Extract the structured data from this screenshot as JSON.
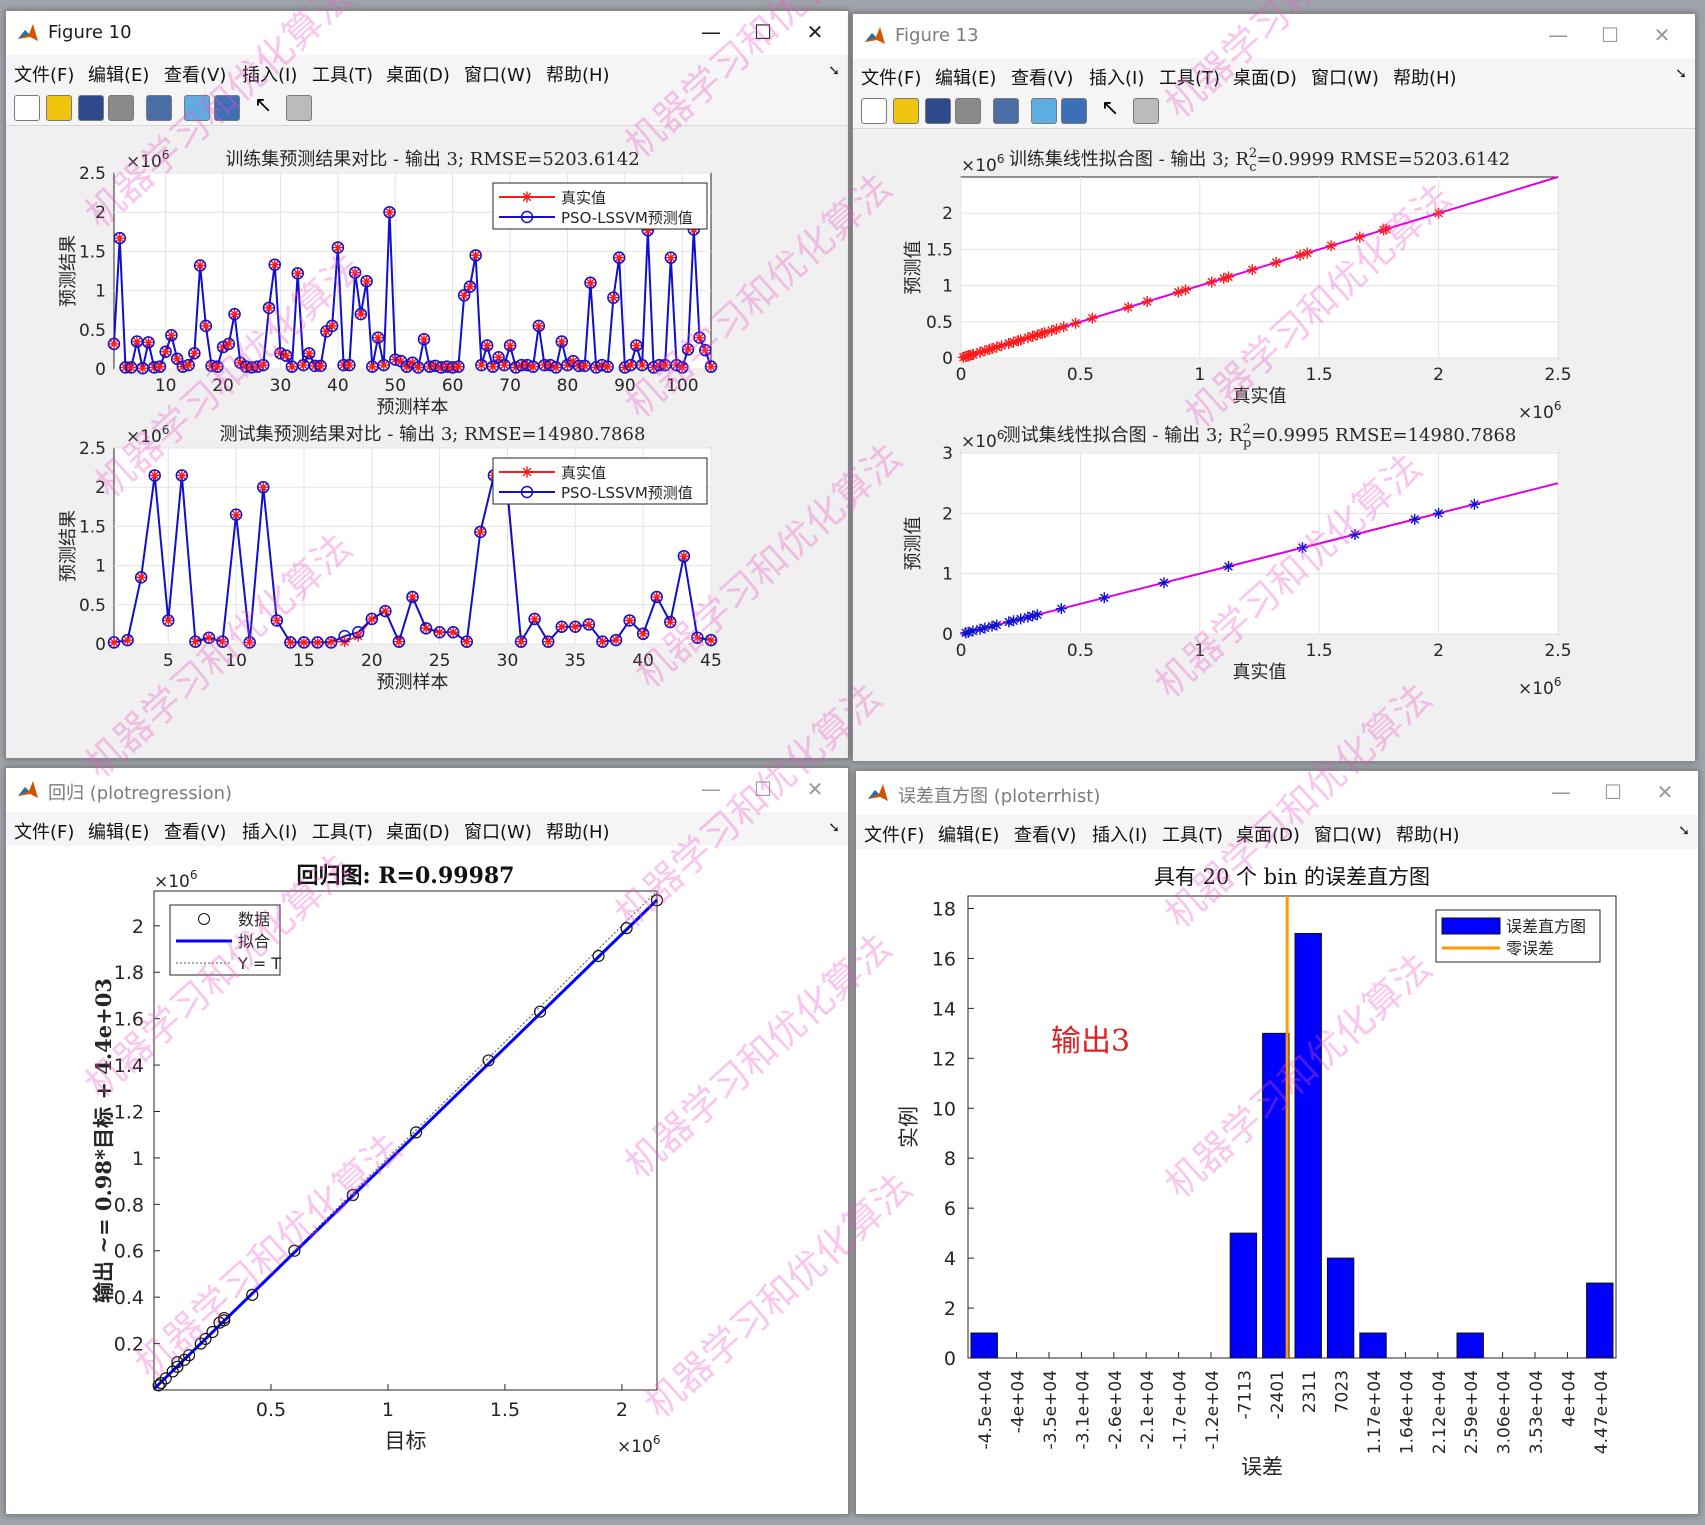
{
  "menu_items": [
    "文件(F)",
    "编辑(E)",
    "查看(V)",
    "插入(I)",
    "工具(T)",
    "桌面(D)",
    "窗口(W)",
    "帮助(H)"
  ],
  "windows": {
    "fig10": {
      "title": "Figure 10"
    },
    "fig13": {
      "title": "Figure 13"
    },
    "reg": {
      "title": "回归 (plotregression)"
    },
    "hist": {
      "title": "误差直方图 (ploterrhist)"
    }
  },
  "colors": {
    "true_value": "#ff1a1a",
    "prediction": "#1010d0",
    "fit_line": "#e000e0",
    "hist_bar": "#0000ff",
    "zero_error": "#ff9900",
    "annotation": "#e02020"
  },
  "watermark": "机器学习和优化算法",
  "chart_data": [
    {
      "id": "train_compare",
      "type": "line",
      "title": "训练集预测结果对比 - 输出 3; RMSE=5203.6142",
      "xlabel": "预测样本",
      "ylabel": "预测结果",
      "y_exponent": "×10^6",
      "xlim": [
        1,
        105
      ],
      "ylim": [
        0,
        2.5
      ],
      "xticks": [
        10,
        20,
        30,
        40,
        50,
        60,
        70,
        80,
        90,
        100
      ],
      "yticks": [
        0,
        0.5,
        1,
        1.5,
        2,
        2.5
      ],
      "legend": {
        "position": "top-right",
        "entries": [
          "真实值",
          "PSO-LSSVM预测值"
        ]
      },
      "series": [
        {
          "name": "真实值",
          "marker": "star",
          "values": [
            0.32,
            1.67,
            0.02,
            0.02,
            0.35,
            0.01,
            0.34,
            0.02,
            0.03,
            0.22,
            0.43,
            0.13,
            0.03,
            0.05,
            0.2,
            1.32,
            0.55,
            0.04,
            0.03,
            0.28,
            0.32,
            0.7,
            0.08,
            0.03,
            0.02,
            0.03,
            0.05,
            0.78,
            1.33,
            0.2,
            0.17,
            0.03,
            1.22,
            0.05,
            0.2,
            0.04,
            0.04,
            0.48,
            0.55,
            1.55,
            0.05,
            0.05,
            1.23,
            0.7,
            1.12,
            0.03,
            0.4,
            0.05,
            2.0,
            0.12,
            0.1,
            0.03,
            0.08,
            0.02,
            0.38,
            0.03,
            0.04,
            0.02,
            0.03,
            0.02,
            0.03,
            0.94,
            1.05,
            1.45,
            0.05,
            0.3,
            0.03,
            0.15,
            0.05,
            0.3,
            0.02,
            0.05,
            0.05,
            0.03,
            0.55,
            0.05,
            0.05,
            0.02,
            0.35,
            0.05,
            0.1,
            0.04,
            0.04,
            1.1,
            0.02,
            0.05,
            0.03,
            0.91,
            1.42,
            0.02,
            0.05,
            0.3,
            0.05,
            1.77,
            0.02,
            0.05,
            0.05,
            1.42,
            0.05,
            0.02,
            0.25,
            1.78,
            0.4,
            0.24,
            0.03
          ]
        },
        {
          "name": "PSO-LSSVM预测值",
          "marker": "circle",
          "values": [
            0.32,
            1.67,
            0.02,
            0.02,
            0.35,
            0.01,
            0.34,
            0.02,
            0.03,
            0.22,
            0.43,
            0.13,
            0.03,
            0.05,
            0.2,
            1.32,
            0.55,
            0.04,
            0.03,
            0.28,
            0.32,
            0.7,
            0.08,
            0.03,
            0.02,
            0.03,
            0.05,
            0.78,
            1.33,
            0.2,
            0.17,
            0.03,
            1.22,
            0.05,
            0.2,
            0.04,
            0.04,
            0.48,
            0.55,
            1.55,
            0.05,
            0.05,
            1.23,
            0.7,
            1.12,
            0.03,
            0.4,
            0.05,
            2.0,
            0.12,
            0.1,
            0.03,
            0.08,
            0.02,
            0.38,
            0.03,
            0.04,
            0.02,
            0.03,
            0.02,
            0.03,
            0.94,
            1.05,
            1.45,
            0.05,
            0.3,
            0.03,
            0.15,
            0.05,
            0.3,
            0.02,
            0.05,
            0.05,
            0.03,
            0.55,
            0.05,
            0.05,
            0.02,
            0.35,
            0.05,
            0.1,
            0.04,
            0.04,
            1.1,
            0.02,
            0.05,
            0.03,
            0.91,
            1.42,
            0.02,
            0.05,
            0.3,
            0.05,
            1.77,
            0.02,
            0.05,
            0.05,
            1.42,
            0.05,
            0.02,
            0.25,
            1.78,
            0.4,
            0.24,
            0.03
          ]
        }
      ]
    },
    {
      "id": "test_compare",
      "type": "line",
      "title": "测试集预测结果对比 - 输出 3; RMSE=14980.7868",
      "xlabel": "预测样本",
      "ylabel": "预测结果",
      "y_exponent": "×10^6",
      "xlim": [
        1,
        45
      ],
      "ylim": [
        0,
        2.5
      ],
      "xticks": [
        5,
        10,
        15,
        20,
        25,
        30,
        35,
        40,
        45
      ],
      "yticks": [
        0,
        0.5,
        1,
        1.5,
        2,
        2.5
      ],
      "legend": {
        "position": "top-right",
        "entries": [
          "真实值",
          "PSO-LSSVM预测值"
        ]
      },
      "series": [
        {
          "name": "真实值",
          "marker": "star",
          "values": [
            0.02,
            0.05,
            0.85,
            2.15,
            0.3,
            2.15,
            0.03,
            0.08,
            0.03,
            1.65,
            0.02,
            2.0,
            0.3,
            0.02,
            0.02,
            0.02,
            0.03,
            0.03,
            0.1,
            0.32,
            0.42,
            0.03,
            0.6,
            0.2,
            0.15,
            0.15,
            0.03,
            1.43,
            2.15,
            2.0,
            0.03,
            0.32,
            0.03,
            0.22,
            0.22,
            0.25,
            0.03,
            0.05,
            0.3,
            0.13,
            0.6,
            0.28,
            1.12,
            0.08,
            0.05
          ]
        },
        {
          "name": "PSO-LSSVM预测值",
          "marker": "circle",
          "values": [
            0.02,
            0.05,
            0.85,
            2.15,
            0.3,
            2.15,
            0.03,
            0.08,
            0.03,
            1.65,
            0.02,
            2.0,
            0.3,
            0.02,
            0.02,
            0.02,
            0.02,
            0.1,
            0.15,
            0.32,
            0.42,
            0.03,
            0.6,
            0.2,
            0.15,
            0.15,
            0.03,
            1.43,
            2.15,
            1.93,
            0.03,
            0.32,
            0.03,
            0.22,
            0.22,
            0.25,
            0.03,
            0.05,
            0.3,
            0.13,
            0.6,
            0.28,
            1.12,
            0.08,
            0.05
          ]
        }
      ]
    },
    {
      "id": "train_fit",
      "type": "scatter",
      "title": "训练集线性拟合图 - 输出 3; R",
      "title_sup": "2",
      "title_sub": "c",
      "title_rest": "=0.9999  RMSE=5203.6142",
      "xlabel": "真实值",
      "ylabel": "预测值",
      "x_exponent": "×10^6",
      "y_exponent": "×10^6",
      "xlim": [
        0,
        2.5
      ],
      "ylim": [
        0,
        2.5
      ],
      "xticks": [
        0,
        0.5,
        1,
        1.5,
        2,
        2.5
      ],
      "yticks": [
        0,
        0.5,
        1,
        1.5,
        2
      ],
      "fit_line": [
        [
          0,
          0
        ],
        [
          2.5,
          2.5
        ]
      ],
      "points": [
        0.01,
        0.02,
        0.02,
        0.03,
        0.03,
        0.03,
        0.04,
        0.05,
        0.05,
        0.05,
        0.08,
        0.08,
        0.1,
        0.12,
        0.13,
        0.15,
        0.17,
        0.2,
        0.2,
        0.22,
        0.24,
        0.25,
        0.28,
        0.3,
        0.3,
        0.32,
        0.34,
        0.35,
        0.38,
        0.4,
        0.43,
        0.48,
        0.55,
        0.7,
        0.78,
        0.91,
        0.94,
        1.05,
        1.1,
        1.12,
        1.22,
        1.32,
        1.42,
        1.45,
        1.55,
        1.67,
        1.77,
        1.78,
        2.0
      ]
    },
    {
      "id": "test_fit",
      "type": "scatter",
      "title": "测试集线性拟合图 - 输出 3; R",
      "title_sup": "2",
      "title_sub": "p",
      "title_rest": "=0.9995  RMSE=14980.7868",
      "xlabel": "真实值",
      "ylabel": "预测值",
      "x_exponent": "×10^6",
      "y_exponent": "×10^6",
      "xlim": [
        0,
        2.5
      ],
      "ylim": [
        0,
        3
      ],
      "xticks": [
        0,
        0.5,
        1,
        1.5,
        2,
        2.5
      ],
      "yticks": [
        0,
        1,
        2,
        3
      ],
      "fit_line": [
        [
          0,
          0
        ],
        [
          2.5,
          2.5
        ]
      ],
      "points": [
        0.02,
        0.03,
        0.05,
        0.08,
        0.1,
        0.13,
        0.15,
        0.2,
        0.22,
        0.25,
        0.28,
        0.3,
        0.32,
        0.42,
        0.6,
        0.85,
        1.12,
        1.43,
        1.65,
        1.9,
        2.0,
        2.15
      ]
    },
    {
      "id": "regression",
      "type": "scatter",
      "title": "回归图: R=0.99987",
      "xlabel": "目标",
      "ylabel": "输出 ~= 0.98*目标 + 4.4e+03",
      "x_exponent": "×10^6",
      "y_exponent": "×10^6",
      "xlim": [
        0,
        2.15
      ],
      "ylim": [
        0,
        2.15
      ],
      "xticks": [
        0.5,
        1,
        1.5,
        2
      ],
      "yticks": [
        0.2,
        0.4,
        0.6,
        0.8,
        1,
        1.2,
        1.4,
        1.6,
        1.8,
        2
      ],
      "legend": {
        "position": "top-left",
        "entries": [
          "数据",
          "拟合",
          "Y = T"
        ]
      },
      "fit": {
        "slope": 0.98,
        "intercept": 0.0044
      },
      "points": [
        [
          0.02,
          0.02
        ],
        [
          0.03,
          0.03
        ],
        [
          0.05,
          0.05
        ],
        [
          0.08,
          0.08
        ],
        [
          0.1,
          0.1
        ],
        [
          0.1,
          0.12
        ],
        [
          0.13,
          0.13
        ],
        [
          0.15,
          0.15
        ],
        [
          0.2,
          0.2
        ],
        [
          0.22,
          0.22
        ],
        [
          0.25,
          0.25
        ],
        [
          0.28,
          0.29
        ],
        [
          0.3,
          0.3
        ],
        [
          0.3,
          0.31
        ],
        [
          0.42,
          0.41
        ],
        [
          0.6,
          0.6
        ],
        [
          0.85,
          0.84
        ],
        [
          1.12,
          1.11
        ],
        [
          1.43,
          1.42
        ],
        [
          1.65,
          1.63
        ],
        [
          1.9,
          1.87
        ],
        [
          2.02,
          1.99
        ],
        [
          2.15,
          2.11
        ]
      ]
    },
    {
      "id": "error_hist",
      "type": "bar",
      "title": "具有 20 个 bin 的误差直方图",
      "title_bold": "20",
      "title_bold2": "bin",
      "xlabel": "误差",
      "ylabel": "实例",
      "categories": [
        "-4.5e+04",
        "-4e+04",
        "-3.5e+04",
        "-3.1e+04",
        "-2.6e+04",
        "-2.1e+04",
        "-1.7e+04",
        "-1.2e+04",
        "-7113",
        "-2401",
        "2311",
        "7023",
        "1.17e+04",
        "1.64e+04",
        "2.12e+04",
        "2.59e+04",
        "3.06e+04",
        "3.53e+04",
        "4e+04",
        "4.47e+04"
      ],
      "values": [
        1,
        0,
        0,
        0,
        0,
        0,
        0,
        0,
        5,
        13,
        17,
        4,
        1,
        0,
        0,
        1,
        0,
        0,
        0,
        3
      ],
      "ylim": [
        0,
        18.5
      ],
      "yticks": [
        0,
        2,
        4,
        6,
        8,
        10,
        12,
        14,
        16,
        18
      ],
      "zero_error_position": 9.85,
      "legend": {
        "position": "top-right",
        "entries": [
          "误差直方图",
          "零误差"
        ]
      },
      "annotation": "输出3"
    }
  ]
}
